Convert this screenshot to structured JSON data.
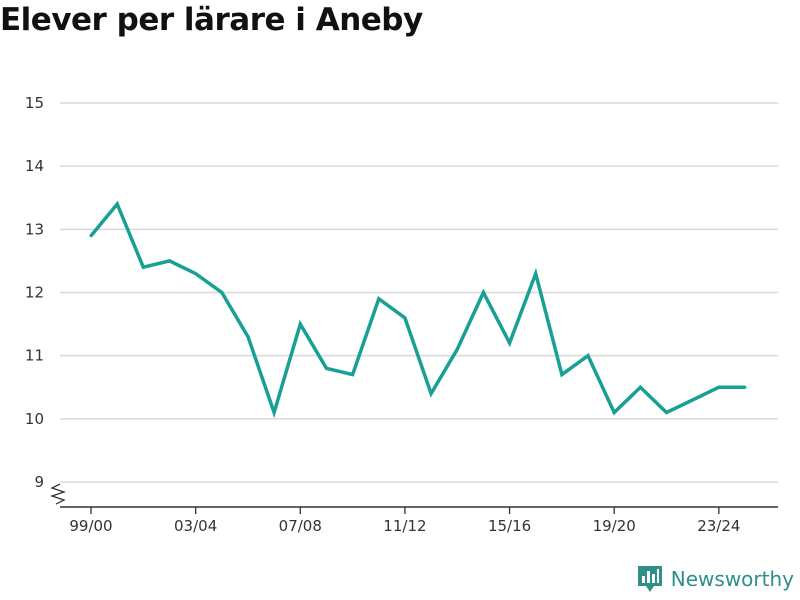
{
  "title": "Elever per lärare i Aneby",
  "brand": {
    "name": "Newsworthy",
    "icon": "newsworthy-logo-icon",
    "color": "#2d8f88"
  },
  "chart_data": {
    "type": "line",
    "title": "Elever per lärare i Aneby",
    "xlabel": "",
    "ylabel": "",
    "ylim": [
      9,
      15
    ],
    "y_ticks": [
      9,
      10,
      11,
      12,
      13,
      14,
      15
    ],
    "y_axis_break": true,
    "grid": true,
    "x_tick_labels": [
      "99/00",
      "03/04",
      "07/08",
      "11/12",
      "15/16",
      "19/20",
      "23/24"
    ],
    "x": [
      "99/00",
      "00/01",
      "01/02",
      "02/03",
      "03/04",
      "04/05",
      "05/06",
      "06/07",
      "07/08",
      "08/09",
      "09/10",
      "10/11",
      "11/12",
      "12/13",
      "13/14",
      "14/15",
      "15/16",
      "16/17",
      "17/18",
      "18/19",
      "19/20",
      "20/21",
      "21/22",
      "22/23",
      "23/24",
      "24/25"
    ],
    "series": [
      {
        "color": "#18a095",
        "values": [
          12.9,
          13.4,
          12.4,
          12.5,
          12.3,
          12.0,
          11.3,
          10.1,
          11.5,
          10.8,
          10.7,
          11.9,
          11.6,
          10.4,
          11.1,
          12.0,
          11.2,
          12.3,
          10.7,
          11.0,
          10.1,
          10.5,
          10.1,
          10.3,
          10.5,
          10.5
        ]
      }
    ]
  }
}
